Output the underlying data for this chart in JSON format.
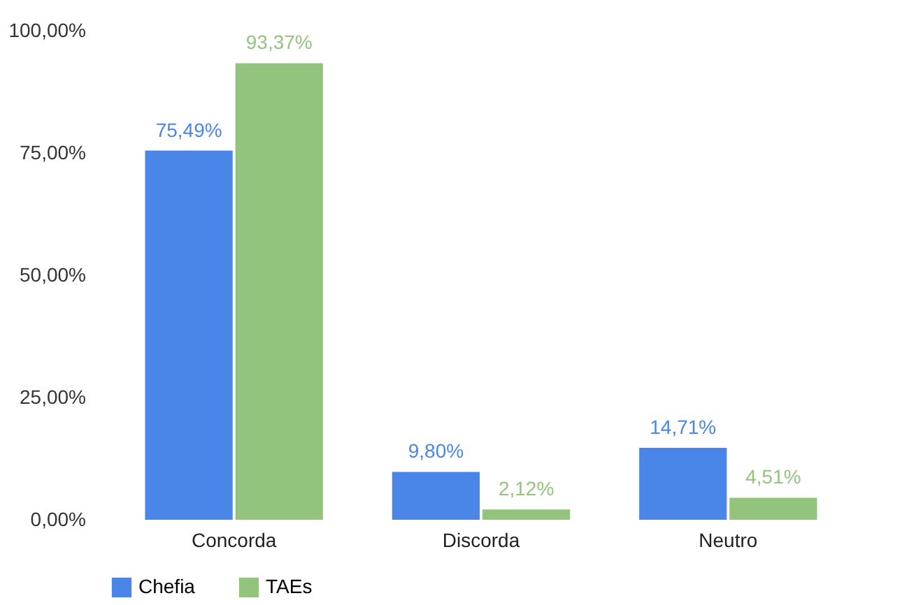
{
  "chart_data": {
    "type": "bar",
    "categories": [
      "Concorda",
      "Discorda",
      "Neutro"
    ],
    "series": [
      {
        "name": "Chefia",
        "color": "#4a86e8",
        "values": [
          75.49,
          9.8,
          14.71
        ],
        "value_labels": [
          "75,49%",
          "9,80%",
          "14,71%"
        ]
      },
      {
        "name": "TAEs",
        "color": "#93c47d",
        "values": [
          93.37,
          2.12,
          4.51
        ],
        "value_labels": [
          "93,37%",
          "2,12%",
          "4,51%"
        ]
      }
    ],
    "ylim": [
      0,
      100
    ],
    "yticks": [
      {
        "value": 0,
        "label": "0,00%"
      },
      {
        "value": 25,
        "label": "25,00%"
      },
      {
        "value": 50,
        "label": "50,00%"
      },
      {
        "value": 75,
        "label": "75,00%"
      },
      {
        "value": 100,
        "label": "100,00%"
      }
    ],
    "legend": "bottom"
  }
}
